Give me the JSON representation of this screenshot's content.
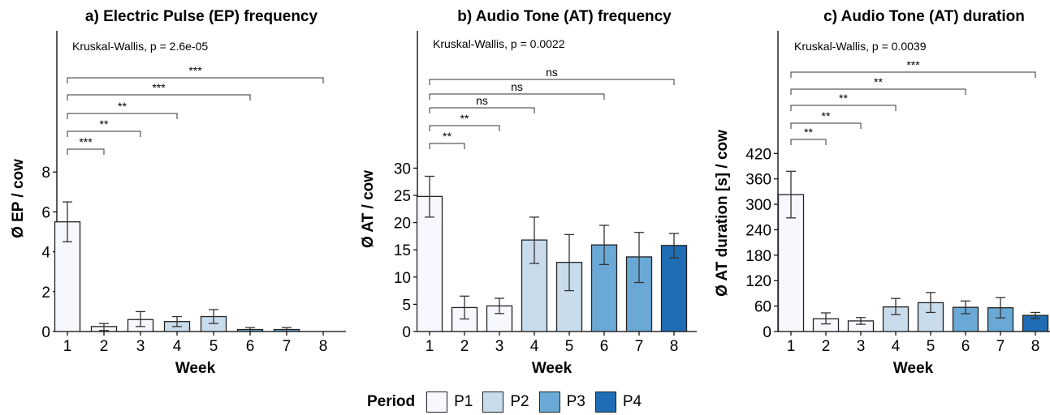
{
  "chart_data": [
    {
      "type": "bar",
      "title": "a) Electric Pulse (EP) frequency",
      "xlabel": "Week",
      "ylabel": "Ø EP / cow",
      "annotation": "Kruskal-Wallis, p = 2.6e-05",
      "categories": [
        "1",
        "2",
        "3",
        "4",
        "5",
        "6",
        "7",
        "8"
      ],
      "values": [
        5.5,
        0.25,
        0.6,
        0.5,
        0.75,
        0.1,
        0.1,
        0
      ],
      "error_low": [
        4.5,
        0.05,
        0.25,
        0.25,
        0.4,
        0.0,
        0.0,
        0
      ],
      "error_high": [
        6.5,
        0.4,
        1.0,
        0.75,
        1.1,
        0.2,
        0.2,
        0
      ],
      "periods": [
        "P1",
        "P1",
        "P1",
        "P2",
        "P2",
        "P3",
        "P3",
        "P4"
      ],
      "ylim": [
        0,
        9.5
      ],
      "yticks": [
        0,
        2,
        4,
        6,
        8
      ],
      "comparisons": [
        {
          "from": "1",
          "to": "2",
          "label": "***"
        },
        {
          "from": "1",
          "to": "3",
          "label": "**"
        },
        {
          "from": "1",
          "to": "4",
          "label": "**"
        },
        {
          "from": "1",
          "to": "6",
          "label": "***"
        },
        {
          "from": "1",
          "to": "8",
          "label": "***"
        }
      ]
    },
    {
      "type": "bar",
      "title": "b) Audio Tone (AT) frequency",
      "xlabel": "Week",
      "ylabel": "Ø AT / cow",
      "annotation": "Kruskal-Wallis, p = 0.0022",
      "categories": [
        "1",
        "2",
        "3",
        "4",
        "5",
        "6",
        "7",
        "8"
      ],
      "values": [
        24.8,
        4.4,
        4.7,
        16.8,
        12.7,
        15.9,
        13.7,
        15.8
      ],
      "error_low": [
        21.0,
        2.3,
        3.3,
        12.5,
        7.5,
        12.3,
        9.0,
        13.5
      ],
      "error_high": [
        28.5,
        6.5,
        6.1,
        21.0,
        17.8,
        19.5,
        18.2,
        18.0
      ],
      "periods": [
        "P1",
        "P1",
        "P1",
        "P2",
        "P2",
        "P3",
        "P3",
        "P4"
      ],
      "ylim": [
        0,
        34
      ],
      "yticks": [
        0,
        5,
        10,
        15,
        20,
        25,
        30
      ],
      "comparisons": [
        {
          "from": "1",
          "to": "2",
          "label": "**"
        },
        {
          "from": "1",
          "to": "3",
          "label": "**"
        },
        {
          "from": "1",
          "to": "4",
          "label": "ns"
        },
        {
          "from": "1",
          "to": "6",
          "label": "ns"
        },
        {
          "from": "1",
          "to": "8",
          "label": "ns"
        }
      ]
    },
    {
      "type": "bar",
      "title": "c) Audio Tone (AT) duration",
      "xlabel": "Week",
      "ylabel": "Ø AT duration [s] / cow",
      "annotation": "Kruskal-Wallis, p = 0.0039",
      "categories": [
        "1",
        "2",
        "3",
        "4",
        "5",
        "6",
        "7",
        "8"
      ],
      "values": [
        323,
        30,
        25,
        58,
        68,
        57,
        56,
        38
      ],
      "error_low": [
        268,
        18,
        17,
        40,
        45,
        42,
        32,
        31
      ],
      "error_high": [
        378,
        44,
        33,
        78,
        92,
        72,
        80,
        45
      ],
      "periods": [
        "P1",
        "P1",
        "P1",
        "P2",
        "P2",
        "P3",
        "P3",
        "P4"
      ],
      "ylim": [
        0,
        460
      ],
      "yticks": [
        0,
        60,
        120,
        180,
        240,
        300,
        360,
        420
      ],
      "comparisons": [
        {
          "from": "1",
          "to": "2",
          "label": "**"
        },
        {
          "from": "1",
          "to": "3",
          "label": "**"
        },
        {
          "from": "1",
          "to": "4",
          "label": "**"
        },
        {
          "from": "1",
          "to": "6",
          "label": "**"
        },
        {
          "from": "1",
          "to": "8",
          "label": "***"
        }
      ]
    }
  ],
  "legend": {
    "title": "Period",
    "placement": "bottom",
    "items": [
      {
        "label": "P1",
        "color": "#f7f8fd"
      },
      {
        "label": "P2",
        "color": "#c9dcec"
      },
      {
        "label": "P3",
        "color": "#6aa9d5"
      },
      {
        "label": "P4",
        "color": "#1f6db5"
      }
    ]
  }
}
